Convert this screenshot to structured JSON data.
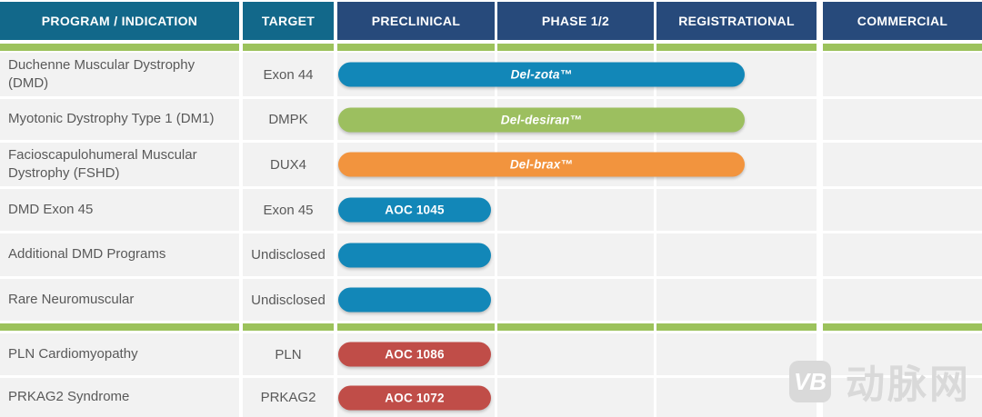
{
  "header": {
    "columns": [
      {
        "label": "PROGRAM / INDICATION",
        "kind": "info"
      },
      {
        "label": "TARGET",
        "kind": "info"
      },
      {
        "label": "PRECLINICAL",
        "kind": "phase"
      },
      {
        "label": "PHASE 1/2",
        "kind": "phase"
      },
      {
        "label": "REGISTRATIONAL",
        "kind": "phase"
      },
      {
        "label": "COMMERCIAL",
        "kind": "phase"
      }
    ]
  },
  "colors": {
    "header_info": "#12688a",
    "header_phase": "#274a7b",
    "separator_green": "#9cc25c",
    "row_background": "#f2f2f2",
    "row_text": "#595959",
    "pill_blue": "#1287b8",
    "pill_green": "#9cbf5f",
    "pill_orange": "#f2943e",
    "pill_red": "#c04d48"
  },
  "chart_data": {
    "type": "table",
    "title": "Drug development pipeline",
    "phases": [
      "Preclinical",
      "Phase 1/2",
      "Registrational",
      "Commercial"
    ],
    "rows": [
      {
        "program": "Duchenne Muscular Dystrophy (DMD)",
        "target": "Exon 44",
        "candidate": "Del-zota™",
        "color": "#1287b8",
        "italic": true,
        "extent": "mid-registrational",
        "separator_after": false
      },
      {
        "program": "Myotonic Dystrophy Type 1 (DM1)",
        "target": "DMPK",
        "candidate": "Del-desiran™",
        "color": "#9cbf5f",
        "italic": true,
        "extent": "mid-registrational",
        "separator_after": false
      },
      {
        "program": "Facioscapulohumeral Muscular Dystrophy (FSHD)",
        "target": "DUX4",
        "candidate": "Del-brax™",
        "color": "#f2943e",
        "italic": true,
        "extent": "mid-registrational",
        "separator_after": false
      },
      {
        "program": "DMD Exon 45",
        "target": "Exon 45",
        "candidate": "AOC 1045",
        "color": "#1287b8",
        "italic": false,
        "extent": "preclinical",
        "separator_after": false
      },
      {
        "program": "Additional DMD Programs",
        "target": "Undisclosed",
        "candidate": "",
        "color": "#1287b8",
        "italic": false,
        "extent": "preclinical",
        "separator_after": false
      },
      {
        "program": "Rare Neuromuscular",
        "target": "Undisclosed",
        "candidate": "",
        "color": "#1287b8",
        "italic": false,
        "extent": "preclinical",
        "separator_after": true
      },
      {
        "program": "PLN Cardiomyopathy",
        "target": "PLN",
        "candidate": "AOC 1086",
        "color": "#c04d48",
        "italic": false,
        "extent": "preclinical",
        "separator_after": false
      },
      {
        "program": "PRKAG2 Syndrome",
        "target": "PRKAG2",
        "candidate": "AOC 1072",
        "color": "#c04d48",
        "italic": false,
        "extent": "preclinical",
        "separator_after": false
      }
    ]
  },
  "watermark": {
    "icon_text": "VB",
    "text": "动脉网"
  }
}
